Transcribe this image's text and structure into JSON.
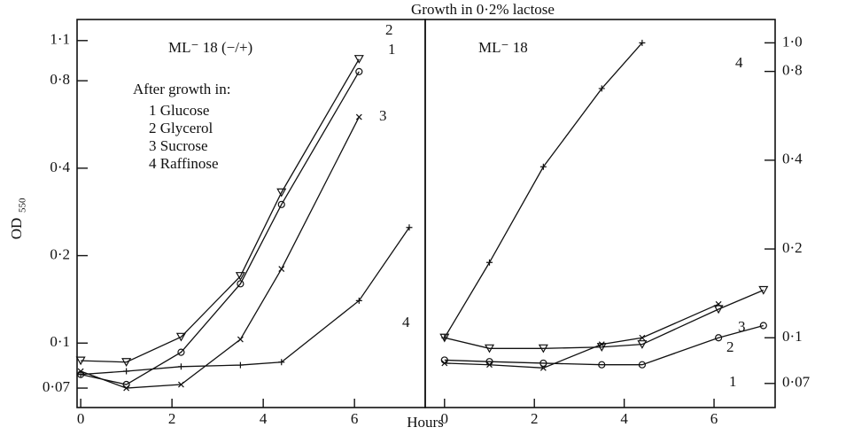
{
  "chart_data": [
    {
      "type": "line",
      "title": "Growth in 0·2% lactose",
      "ylabel": "OD",
      "ylabel_sub": "550",
      "xlabel": "Hours",
      "annotation": "ML⁻ 18 (−/+)",
      "legend_title": "After growth in:",
      "log_y": true,
      "xlim": [
        -0.08,
        7.55
      ],
      "xticks": [
        0,
        2,
        4,
        6
      ],
      "ylim": [
        0.06,
        1.3
      ],
      "yticks": [
        {
          "value": 0.07,
          "label": "0·07"
        },
        {
          "value": 0.1,
          "label": "0·1"
        },
        {
          "value": 0.2,
          "label": "0·2"
        },
        {
          "value": 0.4,
          "label": "0·4"
        },
        {
          "value": 0.8,
          "label": "0·8"
        },
        {
          "value": 1.1,
          "label": "1·1"
        }
      ],
      "series": [
        {
          "name": "1 Glucose",
          "end_label": "1",
          "marker": "circle",
          "x": [
            0,
            1,
            2.2,
            3.5,
            4.4,
            6.1
          ],
          "values": [
            0.078,
            0.072,
            0.093,
            0.16,
            0.3,
            0.86
          ]
        },
        {
          "name": "2 Glycerol",
          "end_label": "2",
          "marker": "triangle",
          "x": [
            0,
            1,
            2.2,
            3.5,
            4.4,
            6.1
          ],
          "values": [
            0.087,
            0.086,
            0.105,
            0.17,
            0.33,
            0.95
          ]
        },
        {
          "name": "3 Sucrose",
          "end_label": "3",
          "marker": "cross",
          "x": [
            0,
            1,
            2.2,
            3.5,
            4.4,
            6.1
          ],
          "values": [
            0.08,
            0.07,
            0.072,
            0.103,
            0.18,
            0.6
          ]
        },
        {
          "name": "4 Raffinose",
          "end_label": "4",
          "marker": "plus",
          "x": [
            0,
            1,
            2.2,
            3.5,
            4.4,
            6.1,
            7.2
          ],
          "values": [
            0.078,
            0.08,
            0.083,
            0.084,
            0.086,
            0.14,
            0.25
          ]
        }
      ]
    },
    {
      "type": "line",
      "annotation": "ML⁻ 18",
      "log_y": true,
      "xlim": [
        -0.43,
        7.36
      ],
      "xticks": [
        0,
        2,
        4,
        6
      ],
      "ylim": [
        0.058,
        1.2
      ],
      "yticks": [
        {
          "value": 0.07,
          "label": "0·07"
        },
        {
          "value": 0.1,
          "label": "0·1"
        },
        {
          "value": 0.2,
          "label": "0·2"
        },
        {
          "value": 0.4,
          "label": "0·4"
        },
        {
          "value": 0.8,
          "label": "0·8"
        },
        {
          "value": 1.0,
          "label": "1·0"
        }
      ],
      "series": [
        {
          "end_label": "1",
          "marker": "circle",
          "x": [
            0,
            1,
            2.2,
            3.5,
            4.4,
            6.1,
            7.1
          ],
          "values": [
            0.084,
            0.083,
            0.082,
            0.081,
            0.081,
            0.1,
            0.11
          ]
        },
        {
          "end_label": "2",
          "marker": "triangle",
          "x": [
            0,
            1,
            2.2,
            3.5,
            4.4,
            6.1,
            7.1
          ],
          "values": [
            0.1,
            0.092,
            0.092,
            0.093,
            0.095,
            0.125,
            0.145
          ]
        },
        {
          "end_label": "3",
          "marker": "cross",
          "x": [
            0,
            1,
            2.2,
            3.5,
            4.4,
            6.1
          ],
          "values": [
            0.082,
            0.081,
            0.079,
            0.095,
            0.1,
            0.13
          ]
        },
        {
          "end_label": "4",
          "marker": "plus",
          "x": [
            0,
            1,
            2.2,
            3.5,
            4.4
          ],
          "values": [
            0.1,
            0.18,
            0.38,
            0.7,
            1.0
          ]
        }
      ]
    }
  ]
}
